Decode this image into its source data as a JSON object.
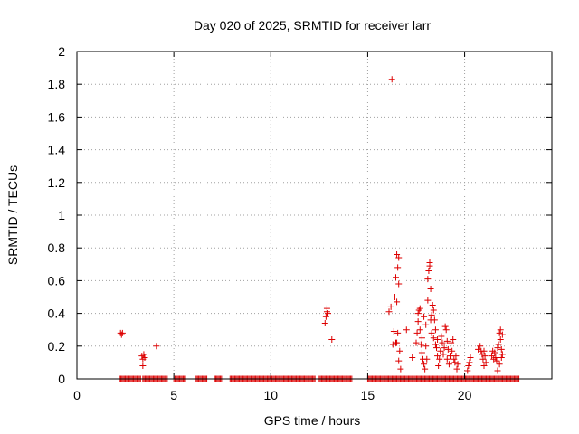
{
  "chart_data": {
    "type": "scatter",
    "title": "Day 020 of 2025, SRMTID for receiver larr",
    "xlabel": "GPS time / hours",
    "ylabel": "SRMTID / TECUs",
    "xlim": [
      0,
      24.5
    ],
    "ylim": [
      0,
      2
    ],
    "xticks": [
      0,
      5,
      10,
      15,
      20
    ],
    "yticks": [
      0,
      0.2,
      0.4,
      0.6,
      0.8,
      1,
      1.2,
      1.4,
      1.6,
      1.8,
      2
    ],
    "ytick_labels": [
      "0",
      "0.2",
      "0.4",
      "0.6",
      "0.8",
      "1",
      "1.2",
      "1.4",
      "1.6",
      "1.8",
      "2"
    ],
    "grid": true,
    "marker": "+",
    "color": "#dd0000",
    "series": [
      {
        "name": "SRMTID",
        "points": [
          [
            2.25,
            0.28
          ],
          [
            2.3,
            0.27
          ],
          [
            2.35,
            0.28
          ],
          [
            3.35,
            0.14
          ],
          [
            3.4,
            0.12
          ],
          [
            3.45,
            0.15
          ],
          [
            3.4,
            0.08
          ],
          [
            3.5,
            0.13
          ],
          [
            4.1,
            0.2
          ],
          [
            12.8,
            0.34
          ],
          [
            12.85,
            0.38
          ],
          [
            12.9,
            0.41
          ],
          [
            12.9,
            0.43
          ],
          [
            12.95,
            0.4
          ],
          [
            13.15,
            0.24
          ],
          [
            16.25,
            1.83
          ],
          [
            16.1,
            0.41
          ],
          [
            16.2,
            0.44
          ],
          [
            16.3,
            0.21
          ],
          [
            16.35,
            0.29
          ],
          [
            16.4,
            0.5
          ],
          [
            16.45,
            0.62
          ],
          [
            16.5,
            0.76
          ],
          [
            16.5,
            0.47
          ],
          [
            16.55,
            0.68
          ],
          [
            16.6,
            0.74
          ],
          [
            16.6,
            0.58
          ],
          [
            16.55,
            0.28
          ],
          [
            16.5,
            0.22
          ],
          [
            16.6,
            0.11
          ],
          [
            16.65,
            0.17
          ],
          [
            16.7,
            0.06
          ],
          [
            16.45,
            0.22
          ],
          [
            17.0,
            0.3
          ],
          [
            17.3,
            0.13
          ],
          [
            17.5,
            0.22
          ],
          [
            17.55,
            0.28
          ],
          [
            17.6,
            0.35
          ],
          [
            17.6,
            0.4
          ],
          [
            17.65,
            0.42
          ],
          [
            17.7,
            0.43
          ],
          [
            17.7,
            0.3
          ],
          [
            17.75,
            0.21
          ],
          [
            17.8,
            0.16
          ],
          [
            17.8,
            0.25
          ],
          [
            17.85,
            0.12
          ],
          [
            17.9,
            0.38
          ],
          [
            17.9,
            0.09
          ],
          [
            17.95,
            0.06
          ],
          [
            18.0,
            0.2
          ],
          [
            18.0,
            0.33
          ],
          [
            18.05,
            0.12
          ],
          [
            18.1,
            0.48
          ],
          [
            18.1,
            0.61
          ],
          [
            18.15,
            0.66
          ],
          [
            18.2,
            0.71
          ],
          [
            18.2,
            0.69
          ],
          [
            18.25,
            0.55
          ],
          [
            18.25,
            0.36
          ],
          [
            18.3,
            0.39
          ],
          [
            18.3,
            0.28
          ],
          [
            18.35,
            0.45
          ],
          [
            18.4,
            0.42
          ],
          [
            18.4,
            0.25
          ],
          [
            18.45,
            0.36
          ],
          [
            18.5,
            0.3
          ],
          [
            18.5,
            0.21
          ],
          [
            18.55,
            0.19
          ],
          [
            18.6,
            0.14
          ],
          [
            18.6,
            0.24
          ],
          [
            18.65,
            0.08
          ],
          [
            18.7,
            0.12
          ],
          [
            18.75,
            0.17
          ],
          [
            18.8,
            0.26
          ],
          [
            18.85,
            0.22
          ],
          [
            18.9,
            0.15
          ],
          [
            18.95,
            0.19
          ],
          [
            19.0,
            0.32
          ],
          [
            19.05,
            0.3
          ],
          [
            19.1,
            0.12
          ],
          [
            19.1,
            0.23
          ],
          [
            19.15,
            0.18
          ],
          [
            19.2,
            0.09
          ],
          [
            19.25,
            0.14
          ],
          [
            19.3,
            0.22
          ],
          [
            19.35,
            0.17
          ],
          [
            19.4,
            0.24
          ],
          [
            19.45,
            0.12
          ],
          [
            19.5,
            0.1
          ],
          [
            19.55,
            0.14
          ],
          [
            19.6,
            0.06
          ],
          [
            19.65,
            0.09
          ],
          [
            20.15,
            0.05
          ],
          [
            20.2,
            0.08
          ],
          [
            20.25,
            0.1
          ],
          [
            20.3,
            0.13
          ],
          [
            20.7,
            0.18
          ],
          [
            20.8,
            0.2
          ],
          [
            20.85,
            0.17
          ],
          [
            20.9,
            0.15
          ],
          [
            20.95,
            0.12
          ],
          [
            21.0,
            0.17
          ],
          [
            21.0,
            0.08
          ],
          [
            21.05,
            0.14
          ],
          [
            21.1,
            0.1
          ],
          [
            21.4,
            0.14
          ],
          [
            21.45,
            0.17
          ],
          [
            21.5,
            0.12
          ],
          [
            21.55,
            0.16
          ],
          [
            21.6,
            0.13
          ],
          [
            21.65,
            0.11
          ],
          [
            21.7,
            0.19
          ],
          [
            21.75,
            0.21
          ],
          [
            21.8,
            0.28
          ],
          [
            21.85,
            0.3
          ],
          [
            21.85,
            0.24
          ],
          [
            21.9,
            0.18
          ],
          [
            21.95,
            0.27
          ],
          [
            21.9,
            0.13
          ],
          [
            21.95,
            0.15
          ],
          [
            21.8,
            0.09
          ],
          [
            21.7,
            0.05
          ]
        ]
      }
    ],
    "zero_rows": [
      [
        2.2,
        3.3
      ],
      [
        3.4,
        4.7
      ],
      [
        5.0,
        5.6
      ],
      [
        6.1,
        6.7
      ],
      [
        7.1,
        7.5
      ],
      [
        7.9,
        12.3
      ],
      [
        12.5,
        14.2
      ],
      [
        15.0,
        22.8
      ]
    ]
  }
}
